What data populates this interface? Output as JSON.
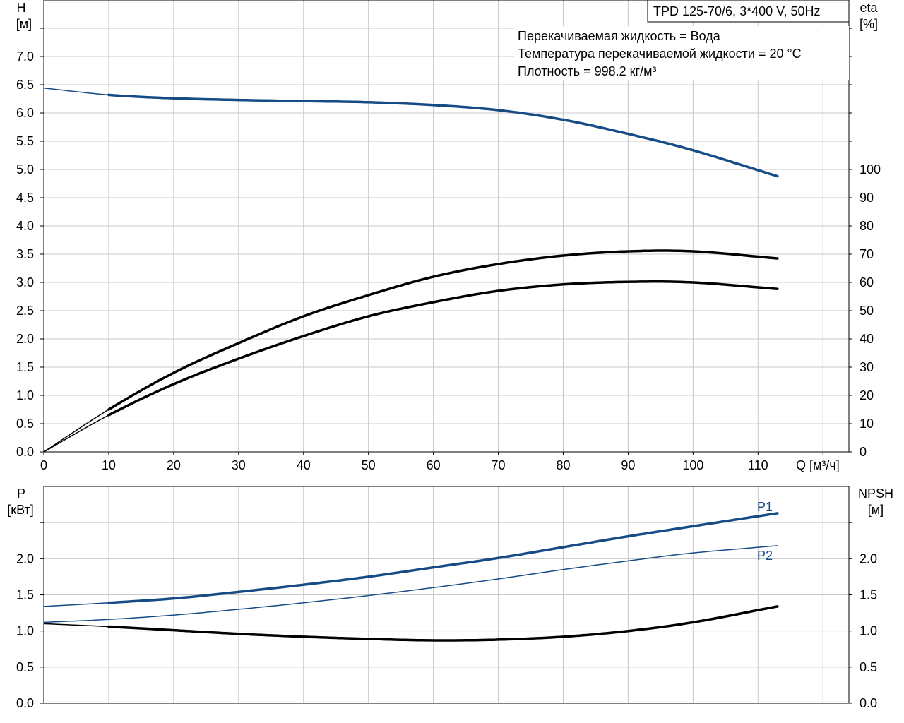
{
  "chart_data": [
    {
      "name": "performance",
      "type": "line",
      "title": "TPD 125-70/6, 3*400 V, 50Hz",
      "xlabel": "Q [м³/ч]",
      "ylabel_left": [
        "H",
        "[м]"
      ],
      "ylabel_right": [
        "eta",
        "[%]"
      ],
      "xlim": [
        0,
        124
      ],
      "ylim_left": [
        0,
        8
      ],
      "ylim_right": [
        0,
        160
      ],
      "x_ticks": [
        0,
        10,
        20,
        30,
        40,
        50,
        60,
        70,
        80,
        90,
        100,
        110
      ],
      "y_ticks_left": [
        0.0,
        0.5,
        1.0,
        1.5,
        2.0,
        2.5,
        3.0,
        3.5,
        4.0,
        4.5,
        5.0,
        5.5,
        6.0,
        6.5,
        7.0
      ],
      "y_ticks_left_labels": [
        "0.0",
        "0.5",
        "1.0",
        "1.5",
        "2.0",
        "2.5",
        "3.0",
        "3.5",
        "4.0",
        "4.5",
        "5.0",
        "5.5",
        "6.0",
        "6.5",
        "7.0"
      ],
      "y_ticks_right": [
        0,
        10,
        20,
        30,
        40,
        50,
        60,
        70,
        80,
        90,
        100
      ],
      "grid": true,
      "annotations": [
        "Перекачиваемая жидкость = Вода",
        "Температура перекачиваемой жидкости = 20 °C",
        "Плотность = 998.2 кг/м³"
      ],
      "series": [
        {
          "key": "H",
          "axis": "left",
          "color": "#164b86",
          "x": [
            0,
            10,
            20,
            30,
            40,
            50,
            60,
            70,
            80,
            90,
            100,
            113
          ],
          "values": [
            6.44,
            6.32,
            6.26,
            6.23,
            6.21,
            6.19,
            6.14,
            6.05,
            5.88,
            5.63,
            5.34,
            4.88
          ],
          "operating_range": [
            10,
            113
          ]
        },
        {
          "key": "eta_pump",
          "axis": "right",
          "color": "#000000",
          "x": [
            0,
            10,
            20,
            30,
            40,
            50,
            60,
            70,
            80,
            90,
            100,
            113
          ],
          "values": [
            0,
            15,
            28,
            38.5,
            48,
            55.5,
            62,
            66.5,
            69.5,
            71,
            71,
            68.5
          ],
          "operating_range": [
            10,
            113
          ]
        },
        {
          "key": "eta_total",
          "axis": "right",
          "color": "#000000",
          "x": [
            0,
            10,
            20,
            30,
            40,
            50,
            60,
            70,
            80,
            90,
            100,
            113
          ],
          "values": [
            0,
            13,
            24,
            33,
            41,
            48,
            53,
            57,
            59.3,
            60.2,
            60,
            57.7
          ],
          "operating_range": [
            10,
            113
          ]
        }
      ]
    },
    {
      "name": "power",
      "type": "line",
      "ylabel_left": [
        "P",
        "[кВт]"
      ],
      "ylabel_right": [
        "NPSH",
        "[м]"
      ],
      "xlim": [
        0,
        124
      ],
      "ylim_left": [
        0,
        3
      ],
      "ylim_right": [
        0,
        3
      ],
      "x_ticks": [
        0,
        10,
        20,
        30,
        40,
        50,
        60,
        70,
        80,
        90,
        100,
        110
      ],
      "y_ticks_left": [
        0.0,
        0.5,
        1.0,
        1.5,
        2.0
      ],
      "y_ticks_left_labels": [
        "0.0",
        "0.5",
        "1.0",
        "1.5",
        "2.0"
      ],
      "y_ticks_right": [
        0.0,
        0.5,
        1.0,
        1.5,
        2.0
      ],
      "y_ticks_right_labels": [
        "0.0",
        "0.5",
        "1.0",
        "1.5",
        "2.0"
      ],
      "grid": true,
      "series": [
        {
          "key": "P1",
          "name": "P1",
          "axis": "left",
          "color": "#164b86",
          "x": [
            0,
            10,
            20,
            30,
            40,
            50,
            60,
            70,
            80,
            90,
            100,
            113
          ],
          "values": [
            1.34,
            1.39,
            1.45,
            1.54,
            1.64,
            1.75,
            1.88,
            2.01,
            2.16,
            2.31,
            2.45,
            2.63
          ],
          "operating_range": [
            10,
            113
          ]
        },
        {
          "key": "P2",
          "name": "P2",
          "axis": "left",
          "color": "#164b86",
          "x": [
            0,
            10,
            20,
            30,
            40,
            50,
            60,
            70,
            80,
            90,
            100,
            113
          ],
          "values": [
            1.12,
            1.16,
            1.22,
            1.3,
            1.39,
            1.49,
            1.6,
            1.72,
            1.85,
            1.97,
            2.08,
            2.18
          ],
          "operating_range": [
            113,
            113
          ]
        },
        {
          "key": "NPSH",
          "axis": "right",
          "color": "#000000",
          "x": [
            0,
            10,
            20,
            30,
            40,
            50,
            60,
            70,
            80,
            90,
            100,
            113
          ],
          "values": [
            1.1,
            1.06,
            1.01,
            0.96,
            0.92,
            0.89,
            0.87,
            0.88,
            0.92,
            1.0,
            1.12,
            1.34
          ],
          "operating_range": [
            10,
            113
          ]
        }
      ]
    }
  ]
}
